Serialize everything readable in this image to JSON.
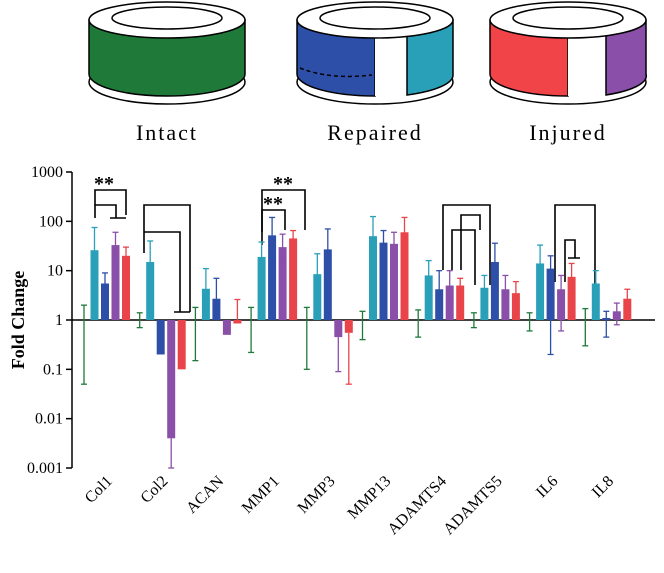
{
  "illustrations": [
    {
      "label": "Intact"
    },
    {
      "label": "Repaired"
    },
    {
      "label": "Injured"
    }
  ],
  "chart_data": {
    "type": "bar",
    "y_label": "Fold Change",
    "log": true,
    "categories": [
      "Col1",
      "Col2",
      "ACAN",
      "MMP1",
      "MMP3",
      "MMP13",
      "ADAMTS4",
      "ADAMTS5",
      "IL6",
      "IL8"
    ],
    "ylim": [
      0.001,
      1000
    ],
    "yticks": [
      0.001,
      0.01,
      0.1,
      1,
      10,
      100,
      1000
    ],
    "baseline": 1,
    "annotations": [
      "**",
      "**",
      "**"
    ],
    "series": [
      {
        "color": "#1f7a3a",
        "values": [
          1,
          1,
          1,
          1,
          1,
          1,
          1,
          1,
          1,
          1
        ],
        "error_low": [
          0.05,
          0.7,
          0.15,
          0.22,
          0.1,
          0.4,
          0.45,
          0.7,
          0.6,
          0.3
        ],
        "error_high": [
          2,
          1.4,
          1.8,
          1.8,
          1.8,
          1.5,
          1.6,
          1.4,
          1.4,
          1.7
        ]
      },
      {
        "color": "#2aa0b8",
        "values": [
          26,
          15,
          4.3,
          19,
          8.5,
          50,
          8,
          4.5,
          14,
          5.5
        ],
        "error_low": [
          13,
          8,
          2.5,
          10,
          4,
          25,
          4.5,
          2.5,
          7,
          3
        ],
        "error_high": [
          75,
          40,
          11,
          38,
          22,
          125,
          16,
          8,
          33,
          10
        ]
      },
      {
        "color": "#2e4fa8",
        "values": [
          5.5,
          0.2,
          2.7,
          52,
          27,
          37,
          4.2,
          15,
          11,
          1.1
        ],
        "error_low": [
          3,
          null,
          1.3,
          25,
          12,
          18,
          1.5,
          6,
          0.2,
          0.45
        ],
        "error_high": [
          9,
          null,
          7,
          120,
          70,
          65,
          10,
          36,
          20,
          1.5
        ]
      },
      {
        "color": "#8a4fa8",
        "values": [
          33,
          0.004,
          0.5,
          30,
          0.45,
          35,
          5,
          4.2,
          4.2,
          1.5
        ],
        "error_low": [
          18,
          0.001,
          null,
          15,
          0.09,
          18,
          2.5,
          2,
          0.6,
          0.8
        ],
        "error_high": [
          60,
          null,
          null,
          55,
          null,
          60,
          10,
          8,
          8,
          2.2
        ]
      },
      {
        "color": "#e8444a",
        "values": [
          20,
          0.1,
          0.85,
          45,
          0.55,
          60,
          5,
          3.5,
          7.5,
          2.7
        ],
        "error_low": [
          12,
          null,
          null,
          25,
          0.05,
          30,
          2.5,
          2,
          3,
          1.5
        ],
        "error_high": [
          30,
          null,
          2.6,
          65,
          null,
          120,
          7,
          6,
          14,
          4.2
        ]
      }
    ]
  }
}
